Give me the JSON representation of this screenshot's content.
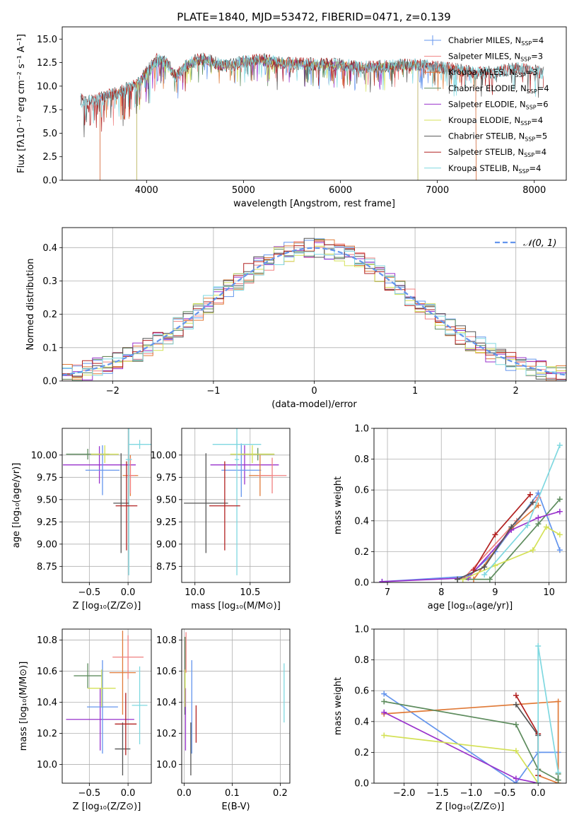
{
  "figure": {
    "title": "PLATE=1840, MJD=53472, FIBERID=0471, z=0.139"
  },
  "chart_data": [
    {
      "id": "spectrum",
      "type": "line",
      "xlabel": "wavelength [Angstrom, rest frame]",
      "ylabel": "Flux [fλ10⁻¹⁷ erg cm⁻² s⁻¹ A⁻¹]",
      "xlim": [
        3130,
        8330
      ],
      "ylim": [
        0,
        16.3
      ],
      "xticks": [
        4000,
        5000,
        6000,
        7000,
        8000
      ],
      "yticks": [
        0.0,
        2.5,
        5.0,
        7.5,
        10.0,
        12.5,
        15.0
      ],
      "yticklabels": [
        "0.0",
        "2.5",
        "5.0",
        "7.5",
        "10.0",
        "12.5",
        "15.0"
      ],
      "grid": false,
      "legend_position": "top-right",
      "data_x": [
        3300,
        3400,
        3500,
        3600,
        3700,
        3800,
        3900,
        4000,
        4100,
        4200,
        4300,
        4400,
        4500,
        4600,
        4700,
        4800,
        4900,
        5000,
        5200,
        5400,
        5600,
        5800,
        6000,
        6200,
        6400,
        6600,
        6800,
        7000,
        7200,
        7400,
        7600,
        7800,
        8000,
        8100
      ],
      "data_y": [
        8.7,
        8.4,
        8.6,
        9.0,
        9.3,
        9.8,
        10.2,
        11.5,
        12.8,
        12.6,
        11.0,
        12.2,
        12.7,
        12.9,
        12.5,
        12.2,
        12.3,
        12.6,
        12.8,
        12.5,
        12.4,
        12.3,
        12.3,
        12.0,
        12.1,
        12.2,
        12.3,
        12.0,
        11.8,
        11.4,
        11.5,
        11.9,
        11.6,
        11.4
      ],
      "series": [
        {
          "name": "Chabrier MILES, N",
          "sub": "SSP",
          "suffix": "=4",
          "color": "#6495ed",
          "xmin": 3520,
          "xmax": 7400
        },
        {
          "name": "Salpeter MILES, N",
          "sub": "SSP",
          "suffix": "=3",
          "color": "#f08080",
          "xmin": 3520,
          "xmax": 7400
        },
        {
          "name": "Kroupa MILES, N",
          "sub": "SSP",
          "suffix": "=3",
          "color": "#e07b39",
          "xmin": 3520,
          "xmax": 7400
        },
        {
          "name": "Chabrier ELODIE, N",
          "sub": "SSP",
          "suffix": "=4",
          "color": "#5e8c5e",
          "xmin": 3900,
          "xmax": 6800
        },
        {
          "name": "Salpeter ELODIE, N",
          "sub": "SSP",
          "suffix": "=6",
          "color": "#9932cc",
          "xmin": 3900,
          "xmax": 6800
        },
        {
          "name": "Kroupa ELODIE, N",
          "sub": "SSP",
          "suffix": "=4",
          "color": "#d4e157",
          "xmin": 3900,
          "xmax": 6800
        },
        {
          "name": "Chabrier STELIB, N",
          "sub": "SSP",
          "suffix": "=5",
          "color": "#555555",
          "xmin": 3320,
          "xmax": 8100
        },
        {
          "name": "Salpeter STELIB, N",
          "sub": "SSP",
          "suffix": "=4",
          "color": "#b22222",
          "xmin": 3320,
          "xmax": 8100
        },
        {
          "name": "Kroupa STELIB, N",
          "sub": "SSP",
          "suffix": "=4",
          "color": "#7fd8e0",
          "xmin": 3320,
          "xmax": 8100
        }
      ]
    },
    {
      "id": "residuals",
      "type": "bar",
      "xlabel": "(data-model)/error",
      "ylabel": "Normed distribution",
      "xlim": [
        -2.5,
        2.5
      ],
      "ylim": [
        0,
        0.46
      ],
      "xticks": [
        -2,
        -1,
        0,
        1,
        2
      ],
      "xticklabels": [
        "−2",
        "−1",
        "0",
        "1",
        "2"
      ],
      "yticks": [
        0.0,
        0.1,
        0.2,
        0.3,
        0.4
      ],
      "yticklabels": [
        "0.0",
        "0.1",
        "0.2",
        "0.3",
        "0.4"
      ],
      "grid": true,
      "legend_position": "top-right",
      "gaussian_label": "𝒩(0, 1)",
      "gaussian_color": "#6495ed",
      "bin_width": 0.1
    },
    {
      "id": "age-vs-Z",
      "type": "scatter",
      "xlabel": "Z [log₁₀(Z/Z⊙)]",
      "ylabel": "age  [log₁₀(age/yr)]",
      "xlim": [
        -0.85,
        0.3
      ],
      "ylim": [
        8.57,
        10.3
      ],
      "xticks": [
        -0.5,
        0.0
      ],
      "xticklabels": [
        "−0.5",
        "0.0"
      ],
      "yticks": [
        8.75,
        9.0,
        9.25,
        9.5,
        9.75,
        10.0
      ],
      "yticklabels": [
        "8.75",
        "9.00",
        "9.25",
        "9.50",
        "9.75",
        "10.00"
      ],
      "grid": true,
      "points": [
        {
          "x": -0.52,
          "y": 10.01,
          "xerr": 0.28,
          "yerr": 0.06,
          "color": "#5e8c5e"
        },
        {
          "x": -0.37,
          "y": 9.89,
          "xerr": 0.47,
          "yerr": 0.21,
          "color": "#9932cc"
        },
        {
          "x": -0.33,
          "y": 9.83,
          "xerr": 0.22,
          "yerr": 0.28,
          "color": "#6495ed"
        },
        {
          "x": -0.3,
          "y": 10.01,
          "xerr": 0.18,
          "yerr": 0.1,
          "color": "#d4e157"
        },
        {
          "x": 0.03,
          "y": 9.77,
          "xerr": 0.1,
          "yerr": 0.23,
          "color": "#e07b39"
        },
        {
          "x": 0.03,
          "y": 9.77,
          "xerr": 0.06,
          "yerr": 0.2,
          "color": "#f08080"
        },
        {
          "x": 0.15,
          "y": 10.12,
          "xerr": 0.15,
          "yerr": 0.05,
          "color": "#7fd8e0"
        },
        {
          "x": 0.01,
          "y": 9.95,
          "xerr": 0.04,
          "yerr": 1.3,
          "color": "#7fd8e0"
        },
        {
          "x": -0.09,
          "y": 9.46,
          "xerr": 0.1,
          "yerr": 0.56,
          "color": "#555555"
        },
        {
          "x": -0.02,
          "y": 9.43,
          "xerr": 0.14,
          "yerr": 0.5,
          "color": "#b22222"
        }
      ]
    },
    {
      "id": "age-vs-mass",
      "type": "scatter",
      "xlabel": "mass [log₁₀(M/M⊙)]",
      "ylabel": "",
      "xlim": [
        9.88,
        10.86
      ],
      "ylim": [
        8.57,
        10.3
      ],
      "xticks": [
        10.0,
        10.5
      ],
      "xticklabels": [
        "10.0",
        "10.5"
      ],
      "yticks": [
        8.75,
        9.0,
        9.25,
        9.5,
        9.75,
        10.0
      ],
      "yticklabels": [
        "8.75",
        "9.00",
        "9.25",
        "9.50",
        "9.75",
        "10.00"
      ],
      "grid": true,
      "points": [
        {
          "x": 10.57,
          "y": 10.01,
          "xerr": 0.15,
          "yerr": 0.07,
          "color": "#5e8c5e"
        },
        {
          "x": 10.45,
          "y": 9.89,
          "xerr": 0.31,
          "yerr": 0.22,
          "color": "#9932cc"
        },
        {
          "x": 10.42,
          "y": 9.83,
          "xerr": 0.18,
          "yerr": 0.3,
          "color": "#6495ed"
        },
        {
          "x": 10.52,
          "y": 10.01,
          "xerr": 0.2,
          "yerr": 0.1,
          "color": "#d4e157"
        },
        {
          "x": 10.59,
          "y": 9.77,
          "xerr": 0.1,
          "yerr": 0.23,
          "color": "#e07b39"
        },
        {
          "x": 10.7,
          "y": 9.77,
          "xerr": 0.13,
          "yerr": 0.2,
          "color": "#f08080"
        },
        {
          "x": 10.38,
          "y": 10.12,
          "xerr": 0.22,
          "yerr": 0.05,
          "color": "#7fd8e0"
        },
        {
          "x": 10.38,
          "y": 9.95,
          "xerr": 0.02,
          "yerr": 1.3,
          "color": "#7fd8e0"
        },
        {
          "x": 10.1,
          "y": 9.46,
          "xerr": 0.2,
          "yerr": 0.56,
          "color": "#555555"
        },
        {
          "x": 10.27,
          "y": 9.43,
          "xerr": 0.14,
          "yerr": 0.5,
          "color": "#b22222"
        }
      ]
    },
    {
      "id": "weight-vs-age",
      "type": "line",
      "xlabel": "age  [log₁₀(age/yr)]",
      "ylabel": "mass weight",
      "xlim": [
        6.75,
        10.32
      ],
      "ylim": [
        0,
        1.0
      ],
      "xticks": [
        7,
        8,
        9,
        10
      ],
      "xticklabels": [
        "7",
        "8",
        "9",
        "10"
      ],
      "yticks": [
        0.0,
        0.2,
        0.4,
        0.6,
        0.8,
        1.0
      ],
      "yticklabels": [
        "0.0",
        "0.2",
        "0.4",
        "0.6",
        "0.8",
        "1.0"
      ],
      "grid": true,
      "series": [
        {
          "color": "#6495ed",
          "x": [
            6.9,
            8.5,
            9.0,
            9.8,
            10.2
          ],
          "y": [
            0.005,
            0.04,
            0.2,
            0.58,
            0.21
          ]
        },
        {
          "color": "#f08080",
          "x": [
            8.4,
            9.4,
            9.8
          ],
          "y": [
            0.02,
            0.4,
            0.55
          ]
        },
        {
          "color": "#e07b39",
          "x": [
            8.6,
            9.3,
            9.8
          ],
          "y": [
            0.02,
            0.35,
            0.5
          ]
        },
        {
          "color": "#5e8c5e",
          "x": [
            8.3,
            8.9,
            9.8,
            10.2
          ],
          "y": [
            0.02,
            0.02,
            0.38,
            0.54
          ]
        },
        {
          "color": "#9932cc",
          "x": [
            6.9,
            8.5,
            9.3,
            9.8,
            10.2
          ],
          "y": [
            0.005,
            0.03,
            0.34,
            0.42,
            0.46
          ]
        },
        {
          "color": "#d4e157",
          "x": [
            8.4,
            9.0,
            9.7,
            9.95,
            10.2
          ],
          "y": [
            0.02,
            0.11,
            0.21,
            0.36,
            0.31
          ]
        },
        {
          "color": "#555555",
          "x": [
            8.3,
            8.8,
            9.3,
            9.7
          ],
          "y": [
            0.02,
            0.1,
            0.36,
            0.52
          ]
        },
        {
          "color": "#b22222",
          "x": [
            8.6,
            9.0,
            9.65
          ],
          "y": [
            0.08,
            0.31,
            0.57
          ]
        },
        {
          "color": "#7fd8e0",
          "x": [
            8.8,
            9.6,
            10.2
          ],
          "y": [
            0.05,
            0.37,
            0.89
          ]
        }
      ]
    },
    {
      "id": "mass-vs-Z",
      "type": "scatter",
      "xlabel": "Z [log₁₀(Z/Z⊙)]",
      "ylabel": "mass [log₁₀(M/M⊙)]",
      "xlim": [
        -0.85,
        0.3
      ],
      "ylim": [
        9.88,
        10.87
      ],
      "xticks": [
        -0.5,
        0.0
      ],
      "xticklabels": [
        "−0.5",
        "0.0"
      ],
      "yticks": [
        10.0,
        10.2,
        10.4,
        10.6,
        10.8
      ],
      "yticklabels": [
        "10.0",
        "10.2",
        "10.4",
        "10.6",
        "10.8"
      ],
      "grid": true,
      "points": [
        {
          "x": -0.52,
          "y": 10.57,
          "xerr": 0.18,
          "yerr": 0.08,
          "color": "#5e8c5e"
        },
        {
          "x": -0.36,
          "y": 10.29,
          "xerr": 0.44,
          "yerr": 0.2,
          "color": "#9932cc"
        },
        {
          "x": -0.33,
          "y": 10.37,
          "xerr": 0.2,
          "yerr": 0.3,
          "color": "#6495ed"
        },
        {
          "x": -0.34,
          "y": 10.49,
          "xerr": 0.18,
          "yerr": 0.12,
          "color": "#d4e157"
        },
        {
          "x": -0.07,
          "y": 10.59,
          "xerr": 0.17,
          "yerr": 0.27,
          "color": "#e07b39"
        },
        {
          "x": 0.0,
          "y": 10.69,
          "xerr": 0.2,
          "yerr": 0.14,
          "color": "#f08080"
        },
        {
          "x": 0.15,
          "y": 10.38,
          "xerr": 0.1,
          "yerr": 0.25,
          "color": "#7fd8e0"
        },
        {
          "x": -0.07,
          "y": 10.1,
          "xerr": 0.1,
          "yerr": 0.17,
          "color": "#555555"
        },
        {
          "x": -0.03,
          "y": 10.26,
          "xerr": 0.14,
          "yerr": 0.2,
          "color": "#b22222"
        }
      ]
    },
    {
      "id": "mass-vs-ebv",
      "type": "scatter",
      "xlabel": "E(B-V)",
      "ylabel": "",
      "xlim": [
        -0.005,
        0.22
      ],
      "ylim": [
        9.88,
        10.87
      ],
      "xticks": [
        0.0,
        0.1,
        0.2
      ],
      "xticklabels": [
        "0.0",
        "0.1",
        "0.2"
      ],
      "yticks": [
        10.0,
        10.2,
        10.4,
        10.6,
        10.8
      ],
      "yticklabels": [
        "10.0",
        "10.2",
        "10.4",
        "10.6",
        "10.8"
      ],
      "grid": true,
      "points": [
        {
          "x": 0.002,
          "y": 10.57,
          "xerr": 0,
          "yerr": 0.25,
          "color": "#5e8c5e"
        },
        {
          "x": 0.003,
          "y": 10.29,
          "xerr": 0,
          "yerr": 0.2,
          "color": "#9932cc"
        },
        {
          "x": 0.004,
          "y": 10.72,
          "xerr": 0,
          "yerr": 0.13,
          "color": "#f08080"
        },
        {
          "x": 0.002,
          "y": 10.49,
          "xerr": 0,
          "yerr": 0.12,
          "color": "#d4e157"
        },
        {
          "x": 0.016,
          "y": 10.37,
          "xerr": 0,
          "yerr": 0.3,
          "color": "#6495ed"
        },
        {
          "x": 0.014,
          "y": 10.1,
          "xerr": 0,
          "yerr": 0.17,
          "color": "#555555"
        },
        {
          "x": 0.025,
          "y": 10.26,
          "xerr": 0,
          "yerr": 0.12,
          "color": "#b22222"
        },
        {
          "x": 0.208,
          "y": 10.46,
          "xerr": 0,
          "yerr": 0.19,
          "color": "#7fd8e0"
        }
      ]
    },
    {
      "id": "weight-vs-Z",
      "type": "line",
      "xlabel": "Z [log₁₀(Z/Z⊙)]",
      "ylabel": "mass weight",
      "xlim": [
        -2.45,
        0.42
      ],
      "ylim": [
        0,
        1.0
      ],
      "xticks": [
        -2.0,
        -1.5,
        -1.0,
        -0.5,
        0.0
      ],
      "xticklabels": [
        "−2.0",
        "−1.5",
        "−1.0",
        "−0.5",
        "0.0"
      ],
      "yticks": [
        0.0,
        0.2,
        0.4,
        0.6,
        0.8,
        1.0
      ],
      "yticklabels": [
        "0.0",
        "0.2",
        "0.4",
        "0.6",
        "0.8",
        "1.0"
      ],
      "grid": true,
      "series": [
        {
          "color": "#6495ed",
          "x": [
            -2.3,
            -0.33,
            0.0,
            0.3,
            0.3
          ],
          "y": [
            0.58,
            0.0,
            0.2,
            0.2,
            0.02
          ]
        },
        {
          "color": "#e07b39",
          "x": [
            -2.3,
            0.3,
            0.3,
            0.0
          ],
          "y": [
            0.45,
            0.53,
            0.0,
            0.05
          ]
        },
        {
          "color": "#f08080",
          "x": [
            0.0,
            0.0
          ],
          "y": [
            0.0,
            0.09
          ]
        },
        {
          "color": "#5e8c5e",
          "x": [
            -2.3,
            -0.33,
            0.0,
            0.3,
            0.3
          ],
          "y": [
            0.53,
            0.38,
            0.09,
            0.02,
            0.06
          ]
        },
        {
          "color": "#9932cc",
          "x": [
            -2.3,
            -0.33,
            0.0
          ],
          "y": [
            0.46,
            0.03,
            0.0
          ]
        },
        {
          "color": "#d4e157",
          "x": [
            -2.3,
            -0.33,
            0.0
          ],
          "y": [
            0.31,
            0.21,
            0.0
          ]
        },
        {
          "color": "#555555",
          "x": [
            -0.33,
            0.0,
            0.0
          ],
          "y": [
            0.51,
            0.31,
            0.0
          ]
        },
        {
          "color": "#b22222",
          "x": [
            -0.33,
            0.0,
            0.0
          ],
          "y": [
            0.57,
            0.32,
            0.05
          ]
        },
        {
          "color": "#7fd8e0",
          "x": [
            0.0,
            0.0,
            0.3
          ],
          "y": [
            0.0,
            0.89,
            0.07
          ]
        }
      ]
    }
  ]
}
